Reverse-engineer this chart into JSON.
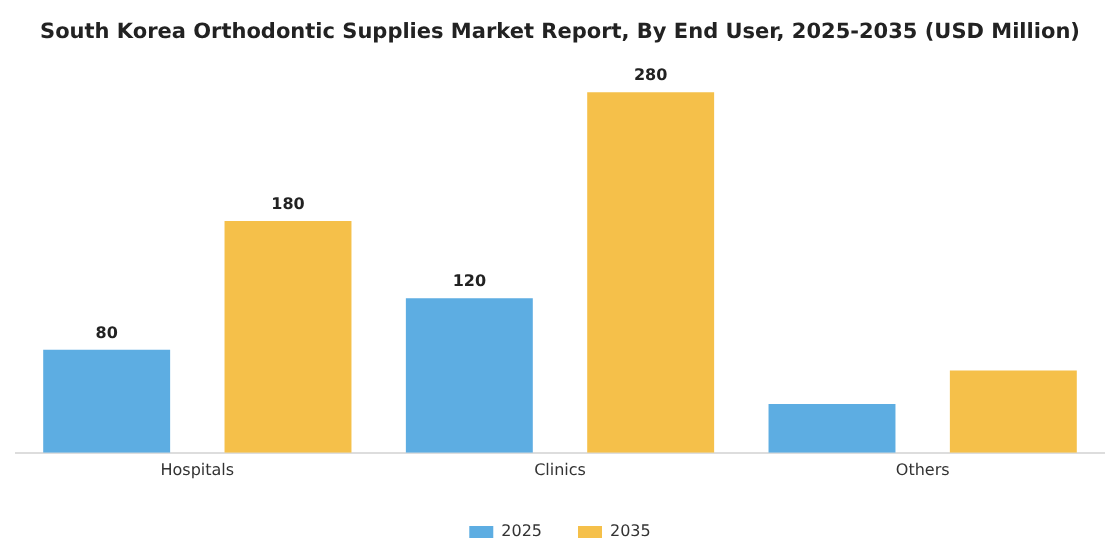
{
  "chart_data": {
    "type": "bar",
    "title": "South Korea Orthodontic Supplies Market Report, By End User, 2025-2035 (USD Million)",
    "categories": [
      "Hospitals",
      "Clinics",
      "Others"
    ],
    "series": [
      {
        "name": "2025",
        "color": "#5dade2",
        "values": [
          80,
          120,
          38
        ],
        "value_labels": [
          "80",
          "120",
          null
        ]
      },
      {
        "name": "2035",
        "color": "#f5c04a",
        "values": [
          180,
          280,
          64
        ],
        "value_labels": [
          "180",
          "280",
          null
        ]
      }
    ],
    "legend": "bottom",
    "grid": false,
    "tick_labels": "x"
  }
}
